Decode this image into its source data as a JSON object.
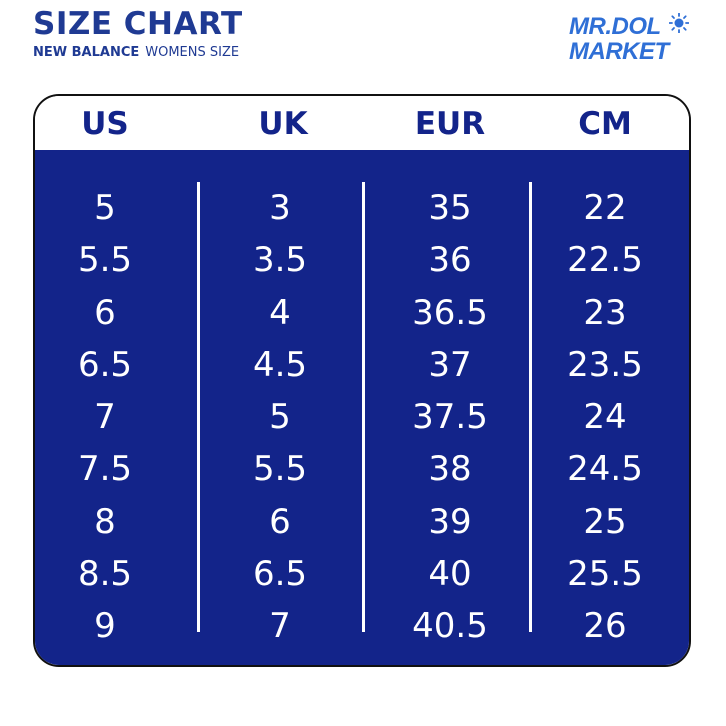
{
  "header": {
    "title": "SIZE CHART",
    "brand": "NEW BALANCE",
    "subtitle": "WOMENS SIZE"
  },
  "logo": {
    "line1": "MR.DOL",
    "line2": "MARKET",
    "icon": "sun-icon"
  },
  "colors": {
    "primary": "#13248a",
    "text": "#1f3a93",
    "logo": "#2f6fd6"
  },
  "table": {
    "columns": [
      {
        "label": "US",
        "values": [
          "5",
          "5.5",
          "6",
          "6.5",
          "7",
          "7.5",
          "8",
          "8.5",
          "9"
        ]
      },
      {
        "label": "UK",
        "values": [
          "3",
          "3.5",
          "4",
          "4.5",
          "5",
          "5.5",
          "6",
          "6.5",
          "7"
        ]
      },
      {
        "label": "EUR",
        "values": [
          "35",
          "36",
          "36.5",
          "37",
          "37.5",
          "38",
          "39",
          "40",
          "40.5"
        ]
      },
      {
        "label": "CM",
        "values": [
          "22",
          "22.5",
          "23",
          "23.5",
          "24",
          "24.5",
          "25",
          "25.5",
          "26"
        ]
      }
    ]
  }
}
